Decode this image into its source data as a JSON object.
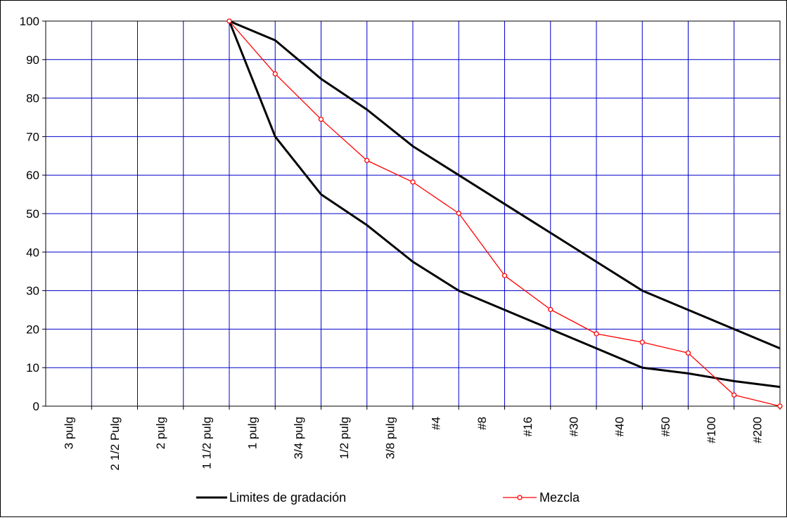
{
  "chart_data": {
    "type": "line",
    "categories": [
      "3 pulg",
      "2 1/2 Pulg",
      "2 pulg",
      "1 1/2 pulg",
      "1 pulg",
      "3/4 pulg",
      "1/2 pulg",
      "3/8 pulg",
      "#4",
      "#8",
      "#16",
      "#30",
      "#40",
      "#50",
      "#100",
      "#200"
    ],
    "ylim": [
      0,
      100
    ],
    "yticks": [
      0,
      10,
      20,
      30,
      40,
      50,
      60,
      70,
      80,
      90,
      100
    ],
    "grid": true,
    "legend_position": "bottom",
    "colors": {
      "limits": "#000000",
      "mix": "#ff0000",
      "grid": "#0000cc"
    },
    "series": [
      {
        "name": "Limites de gradación",
        "key": "upper",
        "values": [
          null,
          null,
          null,
          100,
          95,
          85,
          77,
          67.5,
          60,
          52.5,
          45,
          37.5,
          30,
          25,
          20,
          15
        ]
      },
      {
        "name": "",
        "key": "lower",
        "values": [
          null,
          null,
          null,
          100,
          70,
          55,
          47,
          37.5,
          30,
          25,
          20,
          15,
          10,
          8.5,
          6.5,
          5
        ]
      },
      {
        "name": "Mezcla",
        "key": "mix",
        "values": [
          null,
          null,
          null,
          100,
          86.3,
          74.5,
          63.8,
          58.2,
          50.1,
          33.9,
          25.1,
          18.8,
          16.6,
          13.8,
          2.9,
          0
        ]
      }
    ]
  }
}
